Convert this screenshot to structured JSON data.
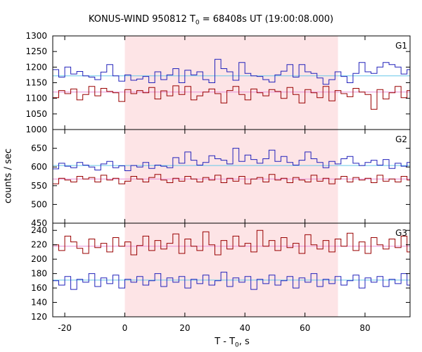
{
  "title": {
    "prefix": "KONUS-WIND 950812 T",
    "sub": "0",
    "suffix": " = 68408s UT (19:00:08.000)"
  },
  "xlabel": {
    "prefix": "T - T",
    "sub": "0",
    "suffix": ", s"
  },
  "ylabel": "counts / sec",
  "colors": {
    "blue": "#2222bb",
    "red": "#990000",
    "cyan_bg": "#66c8e8",
    "pink_bg": "#e890d8",
    "shade": "#fde4e6"
  },
  "chart_data": [
    {
      "type": "line",
      "panel": "G1",
      "x_range": [
        -24,
        95
      ],
      "ylim": [
        1000,
        1300
      ],
      "yticks": [
        1000,
        1050,
        1100,
        1150,
        1200,
        1250,
        1300
      ],
      "xticks": [
        -20,
        0,
        20,
        40,
        60,
        80
      ],
      "shaded_interval": [
        0,
        71
      ],
      "grid": false,
      "bin_width": 2,
      "x_start": -24,
      "series": [
        {
          "color": "blue",
          "background_level": 1172,
          "values": [
            1192,
            1168,
            1200,
            1178,
            1186,
            1172,
            1168,
            1160,
            1184,
            1208,
            1172,
            1155,
            1175,
            1158,
            1162,
            1170,
            1150,
            1185,
            1160,
            1175,
            1195,
            1150,
            1190,
            1175,
            1185,
            1160,
            1150,
            1225,
            1195,
            1185,
            1158,
            1215,
            1180,
            1172,
            1170,
            1160,
            1152,
            1175,
            1187,
            1208,
            1168,
            1208,
            1185,
            1180,
            1165,
            1145,
            1160,
            1185,
            1170,
            1150,
            1180,
            1215,
            1185,
            1180,
            1200,
            1215,
            1208,
            1200,
            1178,
            1192,
            1172,
            1155,
            1160,
            1188,
            1195,
            1142,
            1178,
            1185,
            1160,
            1130,
            1145,
            1195,
            1145,
            1160,
            1182,
            1172,
            1150,
            1180,
            1165,
            1200,
            1180,
            1165,
            1148,
            1160,
            1192,
            1172,
            1148,
            1188,
            1155,
            1182,
            1168,
            1196,
            1150,
            1180,
            1190,
            1178,
            1168,
            1160,
            1150,
            1188,
            1170,
            1152,
            1198,
            1175,
            1172,
            1180,
            1188,
            1175,
            1170,
            1152,
            1190,
            1175,
            1168,
            1185,
            1165,
            1198,
            1182,
            1178,
            1162
          ]
        },
        {
          "color": "red",
          "background_level": 1120,
          "values": [
            1102,
            1125,
            1115,
            1130,
            1095,
            1112,
            1138,
            1108,
            1132,
            1122,
            1118,
            1090,
            1128,
            1115,
            1125,
            1118,
            1135,
            1098,
            1124,
            1108,
            1140,
            1112,
            1138,
            1095,
            1108,
            1120,
            1130,
            1115,
            1085,
            1125,
            1138,
            1112,
            1095,
            1130,
            1118,
            1108,
            1128,
            1122,
            1100,
            1135,
            1112,
            1085,
            1128,
            1118,
            1102,
            1138,
            1092,
            1125,
            1115,
            1105,
            1132,
            1120,
            1112,
            1065,
            1128,
            1098,
            1118,
            1138,
            1102,
            1125,
            1118,
            1070,
            1112,
            1128,
            1095,
            1120,
            1108,
            1135,
            1088,
            1125,
            1118,
            1110,
            1132,
            1095,
            1120,
            1128,
            1100,
            1118,
            1135,
            1108,
            1115,
            1092,
            1128,
            1112,
            1102,
            1122,
            1135,
            1118,
            1078,
            1125,
            1098,
            1128,
            1115,
            1142,
            1108,
            1120,
            1095,
            1130,
            1118,
            1085,
            1125,
            1112,
            1100,
            1132,
            1118,
            1108,
            1096,
            1128,
            1120,
            1112,
            1128,
            1090,
            1122,
            1102,
            1115,
            1135,
            1108,
            1118,
            1095
          ]
        }
      ],
      "label": "G1"
    },
    {
      "type": "line",
      "panel": "G2",
      "x_range": [
        -24,
        95
      ],
      "ylim": [
        450,
        700
      ],
      "yticks": [
        450,
        500,
        550,
        600,
        650
      ],
      "xticks": [
        -20,
        0,
        20,
        40,
        60,
        80
      ],
      "shaded_interval": [
        0,
        71
      ],
      "grid": false,
      "bin_width": 2,
      "x_start": -24,
      "series": [
        {
          "color": "blue",
          "background_level": 604,
          "values": [
            595,
            610,
            602,
            598,
            612,
            605,
            600,
            592,
            608,
            615,
            598,
            603,
            590,
            604,
            600,
            612,
            596,
            605,
            602,
            598,
            625,
            610,
            640,
            618,
            605,
            612,
            630,
            622,
            618,
            608,
            650,
            615,
            632,
            620,
            610,
            622,
            645,
            615,
            628,
            612,
            605,
            618,
            640,
            622,
            612,
            598,
            615,
            608,
            622,
            628,
            610,
            604,
            612,
            618,
            605,
            620,
            596,
            610,
            602,
            612,
            605,
            620,
            598,
            608,
            602,
            615,
            600,
            610,
            595,
            602,
            608,
            598,
            612,
            604,
            615,
            600,
            606,
            598,
            612,
            604,
            610,
            598,
            606,
            600,
            612,
            604,
            596,
            610,
            605,
            602,
            614,
            600,
            608,
            596,
            610,
            604,
            598,
            612,
            600,
            606
          ]
        },
        {
          "color": "red",
          "background_level": 568,
          "values": [
            555,
            570,
            565,
            560,
            575,
            568,
            572,
            560,
            578,
            565,
            570,
            555,
            562,
            575,
            568,
            560,
            572,
            580,
            565,
            558,
            570,
            562,
            575,
            568,
            560,
            572,
            565,
            578,
            558,
            570,
            562,
            575,
            555,
            568,
            572,
            560,
            580,
            565,
            570,
            558,
            572,
            565,
            560,
            578,
            562,
            570,
            555,
            568,
            575,
            560,
            572,
            565,
            570,
            558,
            578,
            562,
            568,
            560,
            575,
            565,
            570,
            555,
            572,
            560,
            578,
            565,
            562,
            570,
            558,
            575,
            565,
            568,
            560,
            572,
            565,
            570,
            558,
            575,
            562,
            568,
            560,
            572,
            565,
            570,
            580,
            545,
            572,
            560,
            568,
            575,
            558,
            565,
            570,
            562,
            575,
            560,
            568,
            572,
            558,
            565
          ]
        }
      ],
      "label": "G2"
    },
    {
      "type": "line",
      "panel": "G3",
      "x_range": [
        -24,
        95
      ],
      "ylim": [
        120,
        250
      ],
      "yticks": [
        120,
        140,
        160,
        180,
        200,
        220,
        240
      ],
      "xticks": [
        -20,
        0,
        20,
        40,
        60,
        80
      ],
      "shaded_interval": [
        0,
        71
      ],
      "grid": false,
      "bin_width": 2,
      "x_start": -24,
      "series": [
        {
          "color": "red",
          "background_level": 218,
          "values": [
            220,
            212,
            232,
            224,
            215,
            208,
            228,
            216,
            222,
            210,
            230,
            218,
            224,
            206,
            219,
            232,
            212,
            226,
            214,
            222,
            235,
            208,
            228,
            218,
            212,
            238,
            220,
            206,
            226,
            214,
            232,
            218,
            222,
            210,
            240,
            218,
            226,
            212,
            230,
            216,
            222,
            208,
            234,
            220,
            214,
            226,
            210,
            228,
            218,
            236,
            212,
            224,
            208,
            230,
            220,
            214,
            228,
            216,
            232,
            210,
            222,
            218,
            228,
            212,
            238,
            216,
            224,
            208,
            230,
            220,
            214,
            226,
            218,
            232,
            210,
            222,
            216,
            228,
            212,
            234
          ]
        },
        {
          "color": "blue",
          "background_level": 171,
          "values": [
            170,
            164,
            176,
            158,
            172,
            168,
            180,
            162,
            174,
            166,
            178,
            160,
            172,
            168,
            176,
            164,
            170,
            180,
            162,
            174,
            168,
            176,
            160,
            172,
            166,
            178,
            164,
            170,
            182,
            162,
            174,
            168,
            176,
            158,
            172,
            166,
            178,
            164,
            170,
            176,
            160,
            174,
            168,
            180,
            162,
            172,
            166,
            176,
            164,
            170,
            178,
            160,
            174,
            168,
            176,
            162,
            172,
            166,
            180,
            164,
            170,
            174,
            160,
            176,
            168,
            172,
            164,
            178,
            162,
            170,
            166,
            176,
            160,
            174,
            168,
            172,
            164,
            178,
            162,
            170
          ]
        }
      ],
      "label": "G3"
    }
  ]
}
